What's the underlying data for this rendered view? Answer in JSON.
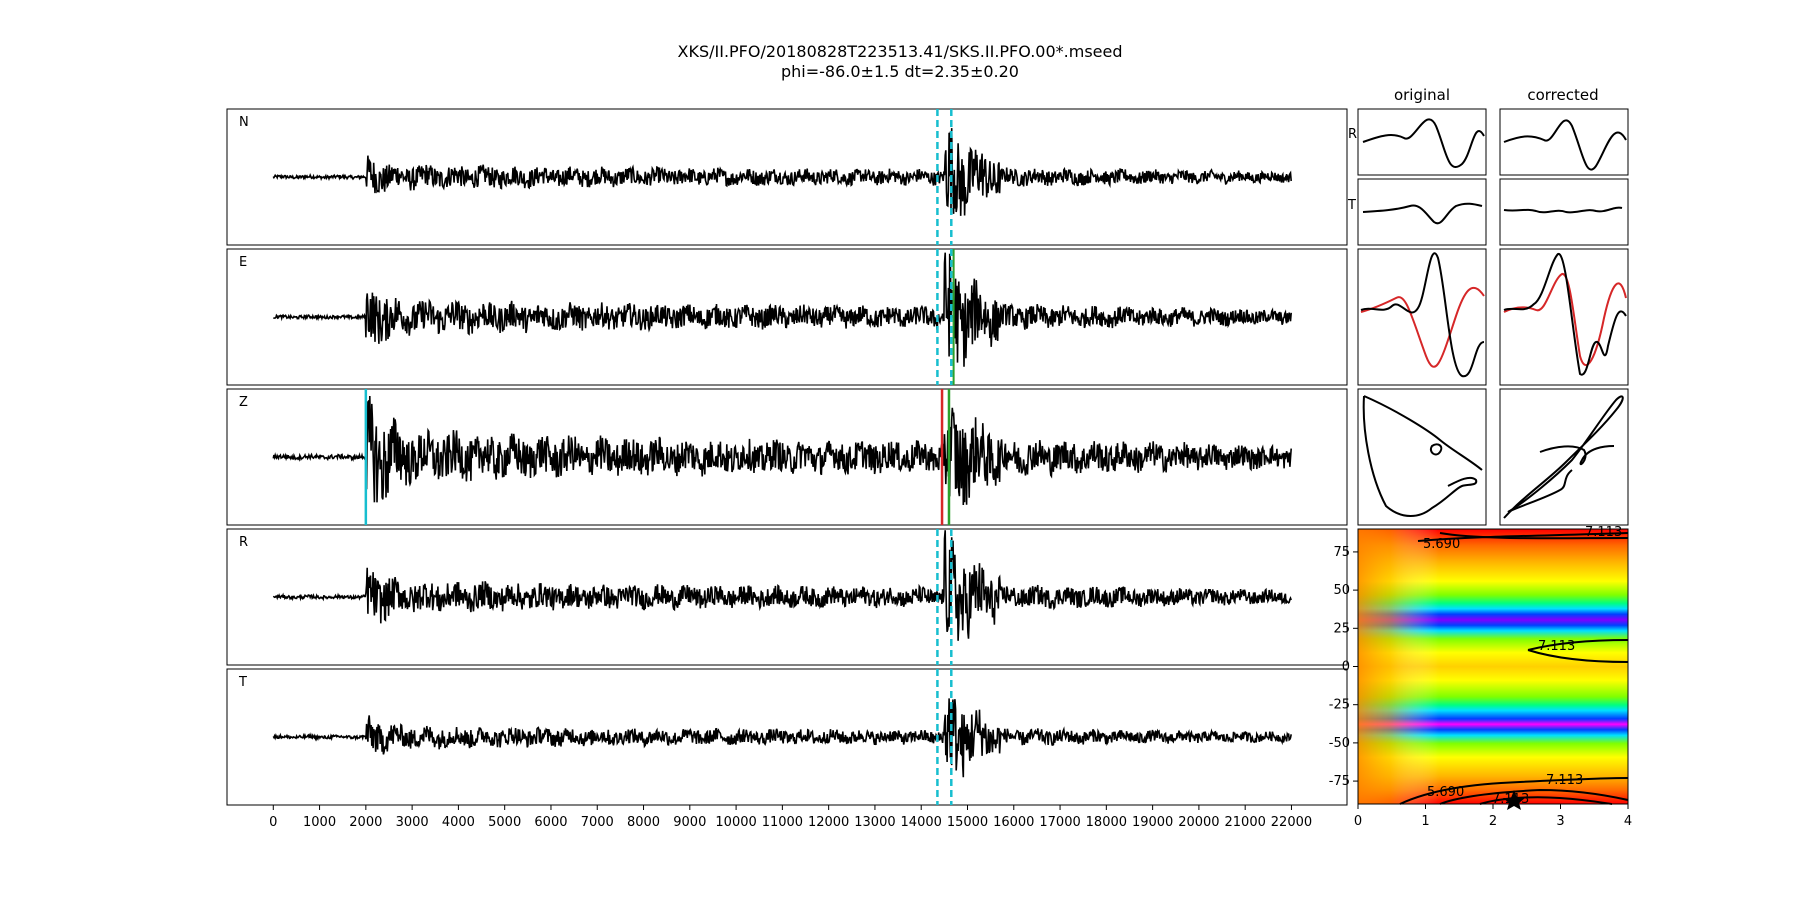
{
  "figure": {
    "title_line1": "XKS/II.PFO/20180828T223513.41/SKS.II.PFO.00*.mseed",
    "title_line2": "phi=-86.0±1.5 dt=2.35±0.20"
  },
  "chart_data": [
    {
      "type": "line",
      "name": "seismograms",
      "panels": [
        "N",
        "E",
        "Z",
        "R",
        "T"
      ],
      "x_ticks": [
        0,
        1000,
        2000,
        3000,
        4000,
        5000,
        6000,
        7000,
        8000,
        9000,
        10000,
        11000,
        12000,
        13000,
        14000,
        15000,
        16000,
        17000,
        18000,
        19000,
        20000,
        21000,
        22000
      ],
      "xlim": [
        -1000,
        23200
      ],
      "trace_range": [
        0,
        22000
      ],
      "ylim": [
        -1,
        1
      ],
      "window_dashed_lines": [
        14350,
        14650
      ],
      "window_color": "#17becf",
      "Z_markers": [
        {
          "x": 2000,
          "color": "#17becf"
        },
        {
          "x": 14450,
          "color": "#d62728"
        },
        {
          "x": 14600,
          "color": "#2ca02c"
        }
      ],
      "E_marker": {
        "x": 14700,
        "color": "#2ca02c"
      },
      "arrival_samples": [
        2000,
        14500
      ]
    },
    {
      "type": "line",
      "name": "particle-motion",
      "column_labels": [
        "original",
        "corrected"
      ],
      "row_labels": [
        "R",
        "T"
      ]
    },
    {
      "type": "heatmap",
      "name": "error-surface",
      "x_ticks": [
        0,
        1,
        2,
        3,
        4
      ],
      "y_ticks": [
        75,
        50,
        25,
        0,
        -25,
        -50,
        -75
      ],
      "xlim": [
        0,
        4
      ],
      "ylim": [
        -90,
        90
      ],
      "contour_labels": [
        "5.690",
        "7.113",
        "5.690",
        "7.113",
        "7.113",
        "5.690",
        "7.113",
        "5.690"
      ],
      "best_fit": {
        "dt": 2.35,
        "phi": -86.0
      }
    }
  ]
}
